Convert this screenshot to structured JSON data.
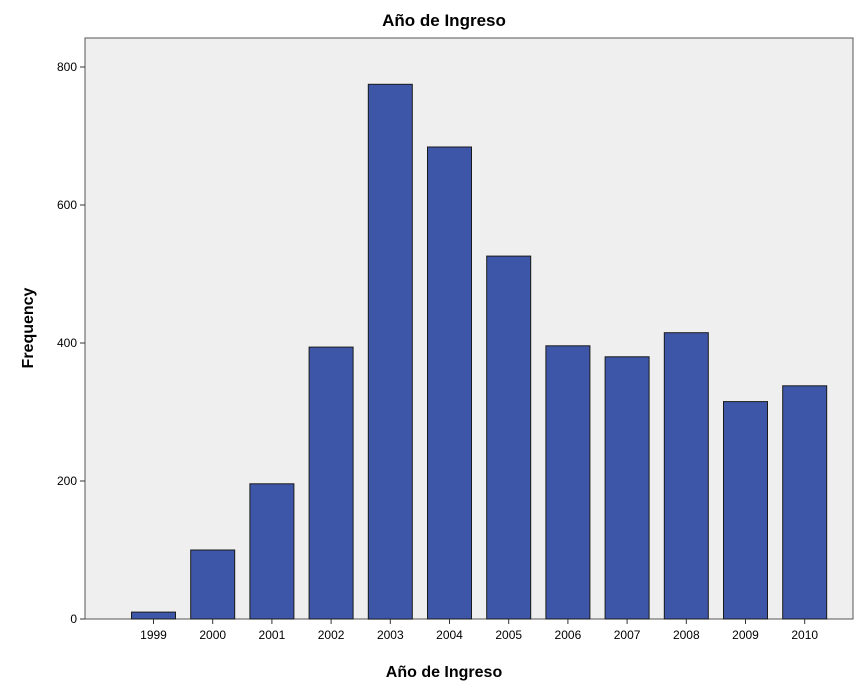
{
  "chart_data": {
    "type": "bar",
    "title": "Año de Ingreso",
    "xlabel": "Año de Ingreso",
    "ylabel": "Frequency",
    "categories": [
      "1999",
      "2000",
      "2001",
      "2002",
      "2003",
      "2004",
      "2005",
      "2006",
      "2007",
      "2008",
      "2009",
      "2010"
    ],
    "values": [
      10,
      100,
      196,
      394,
      775,
      684,
      526,
      396,
      380,
      415,
      315,
      338
    ],
    "ylim": [
      0,
      800
    ],
    "yticks": [
      0,
      200,
      400,
      600,
      800
    ],
    "grid": false,
    "colors": {
      "bar_fill": "#3d56a8",
      "bar_stroke": "#1a1a1a",
      "plot_background": "#efefef",
      "axis": "#333333"
    }
  }
}
